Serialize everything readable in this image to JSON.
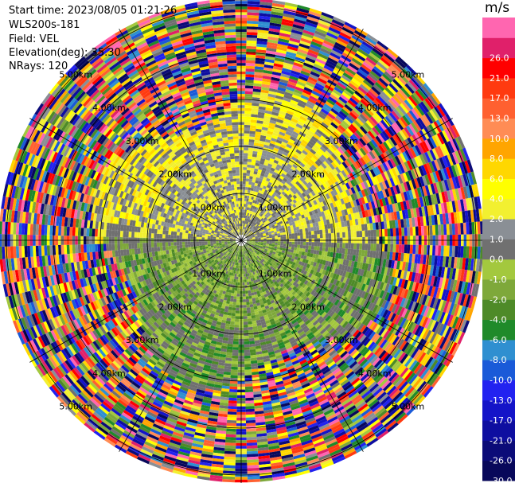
{
  "header": {
    "start_time": "Start time: 2023/08/05 01:21:26",
    "instrument": "WLS200s-181",
    "field": "Field: VEL",
    "elevation": "Elevation(deg): 35.30",
    "nrays": "NRays: 120"
  },
  "colorbar": {
    "unit": "m/s",
    "bins": [
      {
        "label": "-30.0",
        "color": "#08085a"
      },
      {
        "label": "-26.0",
        "color": "#0b0b78"
      },
      {
        "label": "-21.0",
        "color": "#0e0ea0"
      },
      {
        "label": "-17.0",
        "color": "#1414c8"
      },
      {
        "label": "-13.0",
        "color": "#2222f0"
      },
      {
        "label": "-10.0",
        "color": "#1a5ad8"
      },
      {
        "label": "-8.0",
        "color": "#2f8fd0"
      },
      {
        "label": "-6.0",
        "color": "#1f8a2a"
      },
      {
        "label": "-4.0",
        "color": "#4e8a28"
      },
      {
        "label": "-2.0",
        "color": "#7ea83a"
      },
      {
        "label": "-1.0",
        "color": "#a3c83e"
      },
      {
        "label": "0.0",
        "color": "#707070"
      },
      {
        "label": "1.0",
        "color": "#8a8f95"
      },
      {
        "label": "2.0",
        "color": "#f2f030"
      },
      {
        "label": "4.0",
        "color": "#ffff00"
      },
      {
        "label": "6.0",
        "color": "#ffd700"
      },
      {
        "label": "8.0",
        "color": "#ffa500"
      },
      {
        "label": "10.0",
        "color": "#ff8c55"
      },
      {
        "label": "13.0",
        "color": "#ff6030"
      },
      {
        "label": "17.0",
        "color": "#ff3a10"
      },
      {
        "label": "21.0",
        "color": "#ff0000"
      },
      {
        "label": "26.0",
        "color": "#e0206a"
      },
      {
        "label": "",
        "color": "#ff66b0"
      }
    ]
  },
  "chart_data": {
    "type": "heatmap",
    "projection": "polar-ppi",
    "field": "VEL",
    "units": "m/s",
    "nrays": 120,
    "azimuth_step_deg": 3,
    "range_rings_km": [
      1.0,
      2.0,
      3.0,
      4.0,
      5.0
    ],
    "range_ring_labels": [
      "1.00km",
      "2.00km",
      "3.00km",
      "4.00km",
      "5.00km"
    ],
    "pattern": {
      "north_inner_region": "positive 1 to 6 m/s (yellow/gray), within ~3 km",
      "south_inner_region": "negative -1 to -6 m/s (olive/green/gray), within ~3 km",
      "outer_region": "noisy aliased values spanning -30 to 26 m/s beyond ~3 km"
    }
  },
  "colors": {
    "axis_line": "#000000",
    "background": "#ffffff"
  }
}
